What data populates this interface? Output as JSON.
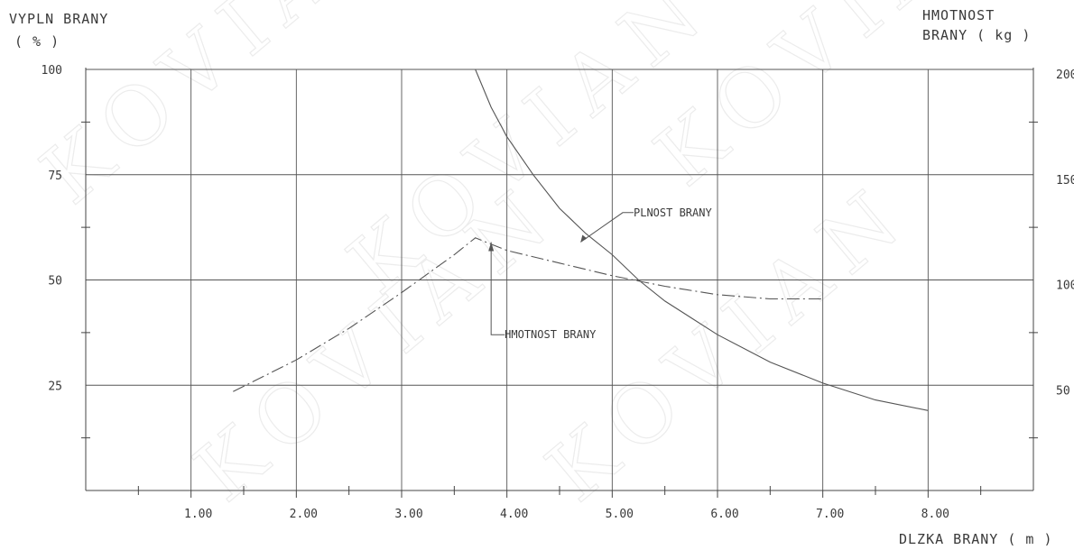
{
  "chart_data": {
    "type": "line",
    "watermark": "KOVIAN",
    "left_axis": {
      "title_line1": "VYPLN BRANY",
      "title_line2": "( % )",
      "range": [
        0,
        100
      ],
      "ticks": [
        "100",
        "75",
        "50",
        "25"
      ],
      "tick_values": [
        100,
        75,
        50,
        25
      ]
    },
    "right_axis": {
      "title_line1": "HMOTNOST",
      "title_line2": "BRANY ( kg )",
      "range": [
        0,
        200
      ],
      "ticks": [
        "200",
        "150",
        "100",
        "50"
      ],
      "tick_values": [
        200,
        150,
        100,
        50
      ]
    },
    "x_axis": {
      "label": "DLZKA BRANY ( m )",
      "range": [
        0,
        9
      ],
      "ticks": [
        "1.00",
        "2.00",
        "3.00",
        "4.00",
        "5.00",
        "6.00",
        "7.00",
        "8.00"
      ],
      "tick_values": [
        1,
        2,
        3,
        4,
        5,
        6,
        7,
        8
      ]
    },
    "grid": true,
    "series": [
      {
        "name": "PLNOST BRANY",
        "axis": "left",
        "style": "solid",
        "points": [
          [
            3.7,
            100
          ],
          [
            3.85,
            91
          ],
          [
            4.0,
            84
          ],
          [
            4.25,
            75
          ],
          [
            4.5,
            67
          ],
          [
            4.75,
            61
          ],
          [
            5.0,
            56
          ],
          [
            5.25,
            50
          ],
          [
            5.5,
            45
          ],
          [
            5.75,
            41
          ],
          [
            6.0,
            37
          ],
          [
            6.5,
            30.5
          ],
          [
            7.0,
            25.5
          ],
          [
            7.5,
            21.5
          ],
          [
            8.0,
            19
          ]
        ]
      },
      {
        "name": "HMOTNOST BRANY",
        "axis": "right",
        "style": "dashdot",
        "points": [
          [
            1.4,
            47
          ],
          [
            2.0,
            62
          ],
          [
            2.5,
            77
          ],
          [
            3.0,
            94
          ],
          [
            3.5,
            112
          ],
          [
            3.7,
            120
          ],
          [
            4.0,
            114
          ],
          [
            4.5,
            108
          ],
          [
            5.0,
            102
          ],
          [
            5.5,
            97
          ],
          [
            6.0,
            93
          ],
          [
            6.5,
            91
          ],
          [
            7.0,
            91
          ]
        ]
      }
    ],
    "annotations": [
      {
        "text": "PLNOST BRANY",
        "series": 0
      },
      {
        "text": "HMOTNOST BRANY",
        "series": 1
      }
    ]
  }
}
